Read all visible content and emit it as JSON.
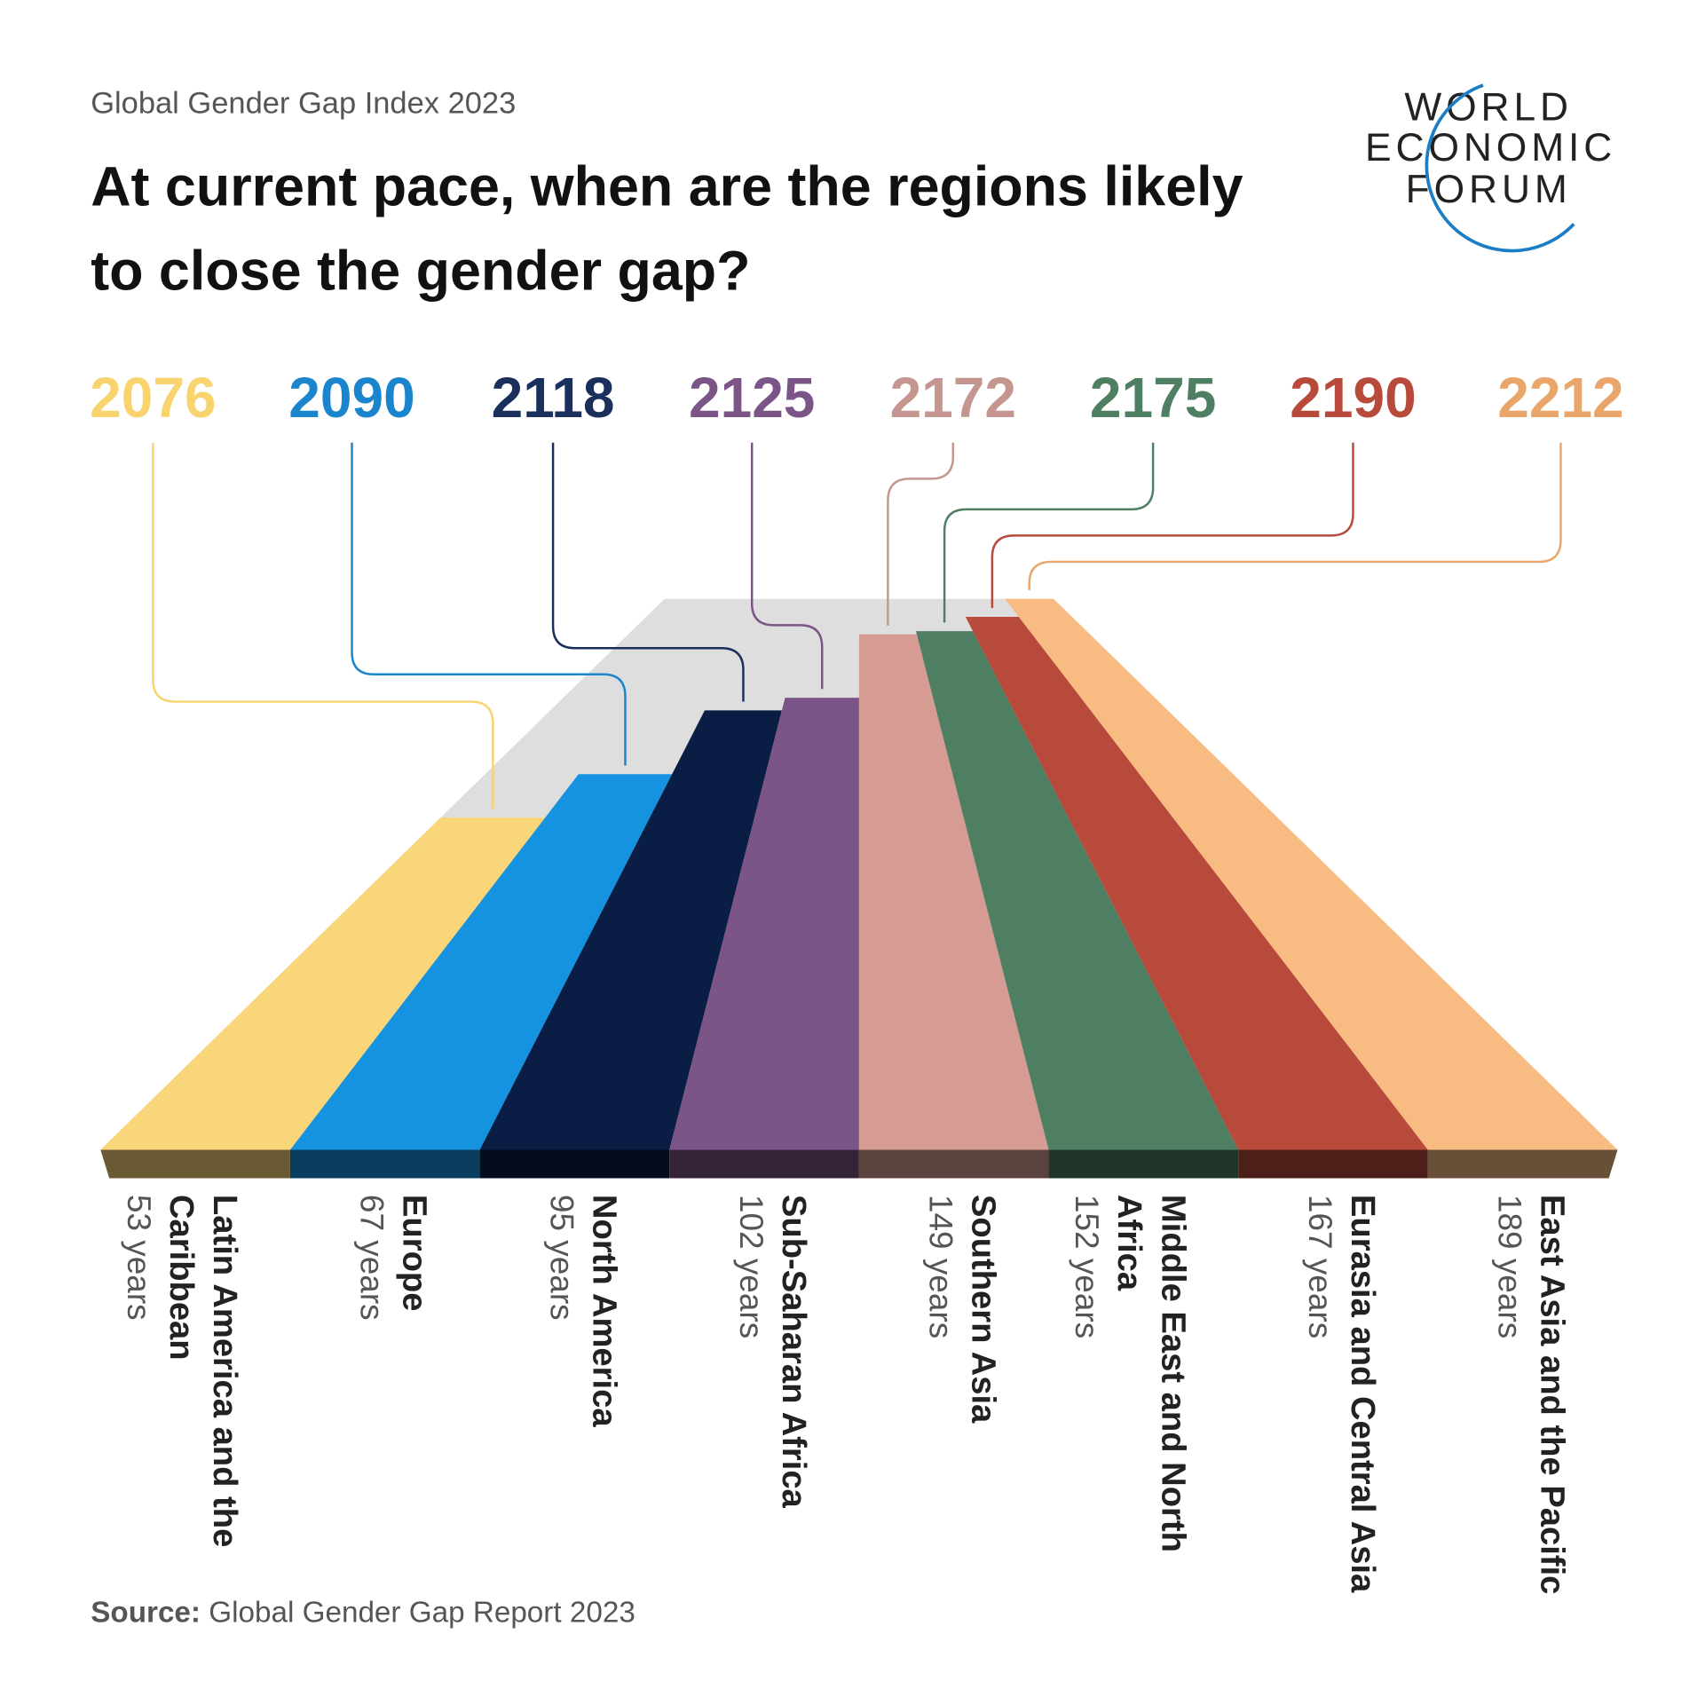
{
  "chart_data": {
    "type": "perspective-bar",
    "subtitle": "Global Gender Gap Index 2023",
    "title": "At current pace, when are the regions likely to close the gender gap?",
    "categories": [
      "Latin America and the Caribbean",
      "Europe",
      "North America",
      "Sub-Saharan Africa",
      "Southern Asia",
      "Middle East and North Africa",
      "Eurasia and Central Asia",
      "East Asia and the Pacific"
    ],
    "values": [
      53,
      67,
      95,
      102,
      149,
      152,
      167,
      189
    ],
    "value_labels": [
      "53 years",
      "67 years",
      "95 years",
      "102 years",
      "149 years",
      "152 years",
      "167 years",
      "189 years"
    ],
    "close_years": [
      2076,
      2090,
      2118,
      2125,
      2172,
      2175,
      2190,
      2212
    ],
    "colors": [
      "#f9d67a",
      "#1592e0",
      "#0a1d45",
      "#7b5587",
      "#d69c94",
      "#4e7f62",
      "#b84a3b",
      "#f8bb82"
    ],
    "label_colors": [
      "#f8d36e",
      "#1a85cd",
      "#1b2f5c",
      "#7b5587",
      "#c4968f",
      "#4e7f62",
      "#b84a3b",
      "#eaa66a"
    ],
    "source_label": "Source:",
    "source": "Global Gender Gap Report 2023"
  },
  "logo": {
    "lines": [
      "WORLD",
      "ECONOMIC",
      "FORUM"
    ]
  }
}
